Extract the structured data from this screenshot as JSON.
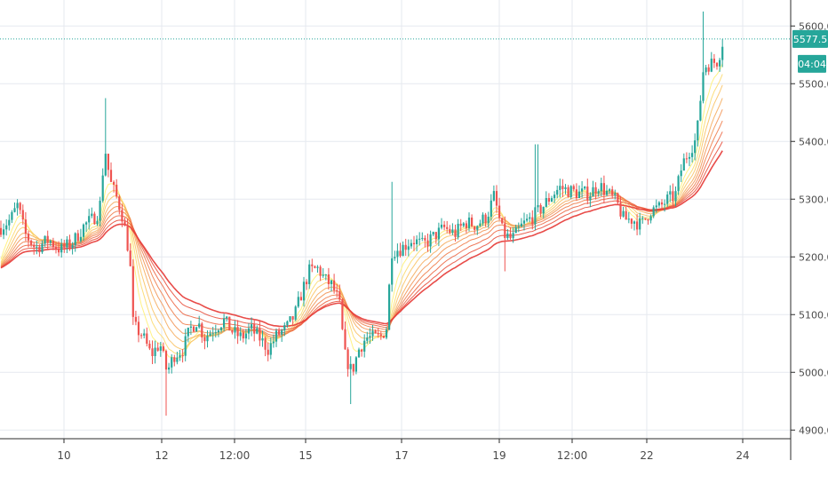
{
  "chart_data": {
    "type": "candlestick",
    "symbol_note": "",
    "colors": {
      "up": "#26a69a",
      "down": "#ef5350",
      "price_line": "#26a69a",
      "ribbon_fast": "#fff176",
      "ribbon_slow": "#e53935",
      "grid": "#e6e9ef",
      "axis_text": "#4a4a4a",
      "background": "#ffffff"
    },
    "ylim": [
      4885,
      5645
    ],
    "y_ticks": [
      "4900.0",
      "5000.0",
      "5100.0",
      "5200.0",
      "5300.0",
      "5400.0",
      "5500.0",
      "5600.0"
    ],
    "x_ticks": [
      "10",
      "12",
      "12:00",
      "15",
      "17",
      "19",
      "12:00",
      "22",
      "24"
    ],
    "last_price_label": "5577.5",
    "countdown_label": "04:04",
    "grid": true,
    "price_anchors": [
      [
        0,
        5250
      ],
      [
        12,
        5265
      ],
      [
        20,
        5290
      ],
      [
        28,
        5240
      ],
      [
        40,
        5215
      ],
      [
        55,
        5230
      ],
      [
        68,
        5212
      ],
      [
        82,
        5225
      ],
      [
        95,
        5255
      ],
      [
        104,
        5265
      ],
      [
        112,
        5280
      ],
      [
        118,
        5390
      ],
      [
        124,
        5330
      ],
      [
        132,
        5300
      ],
      [
        138,
        5270
      ],
      [
        146,
        5200
      ],
      [
        150,
        5080
      ],
      [
        160,
        5065
      ],
      [
        170,
        5030
      ],
      [
        180,
        5050
      ],
      [
        188,
        5000
      ],
      [
        196,
        5030
      ],
      [
        206,
        5040
      ],
      [
        214,
        5075
      ],
      [
        222,
        5090
      ],
      [
        230,
        5060
      ],
      [
        240,
        5075
      ],
      [
        252,
        5090
      ],
      [
        262,
        5070
      ],
      [
        272,
        5060
      ],
      [
        282,
        5075
      ],
      [
        292,
        5060
      ],
      [
        302,
        5040
      ],
      [
        312,
        5065
      ],
      [
        322,
        5075
      ],
      [
        332,
        5100
      ],
      [
        340,
        5140
      ],
      [
        348,
        5175
      ],
      [
        358,
        5180
      ],
      [
        366,
        5160
      ],
      [
        374,
        5150
      ],
      [
        382,
        5120
      ],
      [
        388,
        5030
      ],
      [
        396,
        5000
      ],
      [
        404,
        5040
      ],
      [
        412,
        5060
      ],
      [
        420,
        5060
      ],
      [
        428,
        5060
      ],
      [
        436,
        5080
      ],
      [
        440,
        5210
      ],
      [
        452,
        5215
      ],
      [
        464,
        5230
      ],
      [
        476,
        5220
      ],
      [
        488,
        5235
      ],
      [
        500,
        5250
      ],
      [
        512,
        5240
      ],
      [
        524,
        5260
      ],
      [
        536,
        5255
      ],
      [
        548,
        5270
      ],
      [
        556,
        5305
      ],
      [
        566,
        5240
      ],
      [
        576,
        5230
      ],
      [
        588,
        5255
      ],
      [
        600,
        5270
      ],
      [
        610,
        5285
      ],
      [
        620,
        5305
      ],
      [
        630,
        5320
      ],
      [
        640,
        5315
      ],
      [
        652,
        5310
      ],
      [
        664,
        5310
      ],
      [
        674,
        5325
      ],
      [
        684,
        5310
      ],
      [
        694,
        5295
      ],
      [
        702,
        5265
      ],
      [
        712,
        5265
      ],
      [
        722,
        5255
      ],
      [
        732,
        5280
      ],
      [
        742,
        5285
      ],
      [
        752,
        5300
      ],
      [
        760,
        5305
      ],
      [
        768,
        5360
      ],
      [
        776,
        5385
      ],
      [
        784,
        5405
      ],
      [
        792,
        5530
      ],
      [
        800,
        5535
      ],
      [
        808,
        5540
      ],
      [
        814,
        5577
      ]
    ],
    "spike_notes": [
      {
        "x": 118,
        "high": 5475
      },
      {
        "x": 440,
        "high": 5330
      },
      {
        "x": 792,
        "high": 5625
      },
      {
        "x": 188,
        "low": 4925
      },
      {
        "x": 396,
        "low": 4945
      },
      {
        "x": 568,
        "low": 5175
      },
      {
        "x": 604,
        "high": 5395
      }
    ]
  }
}
